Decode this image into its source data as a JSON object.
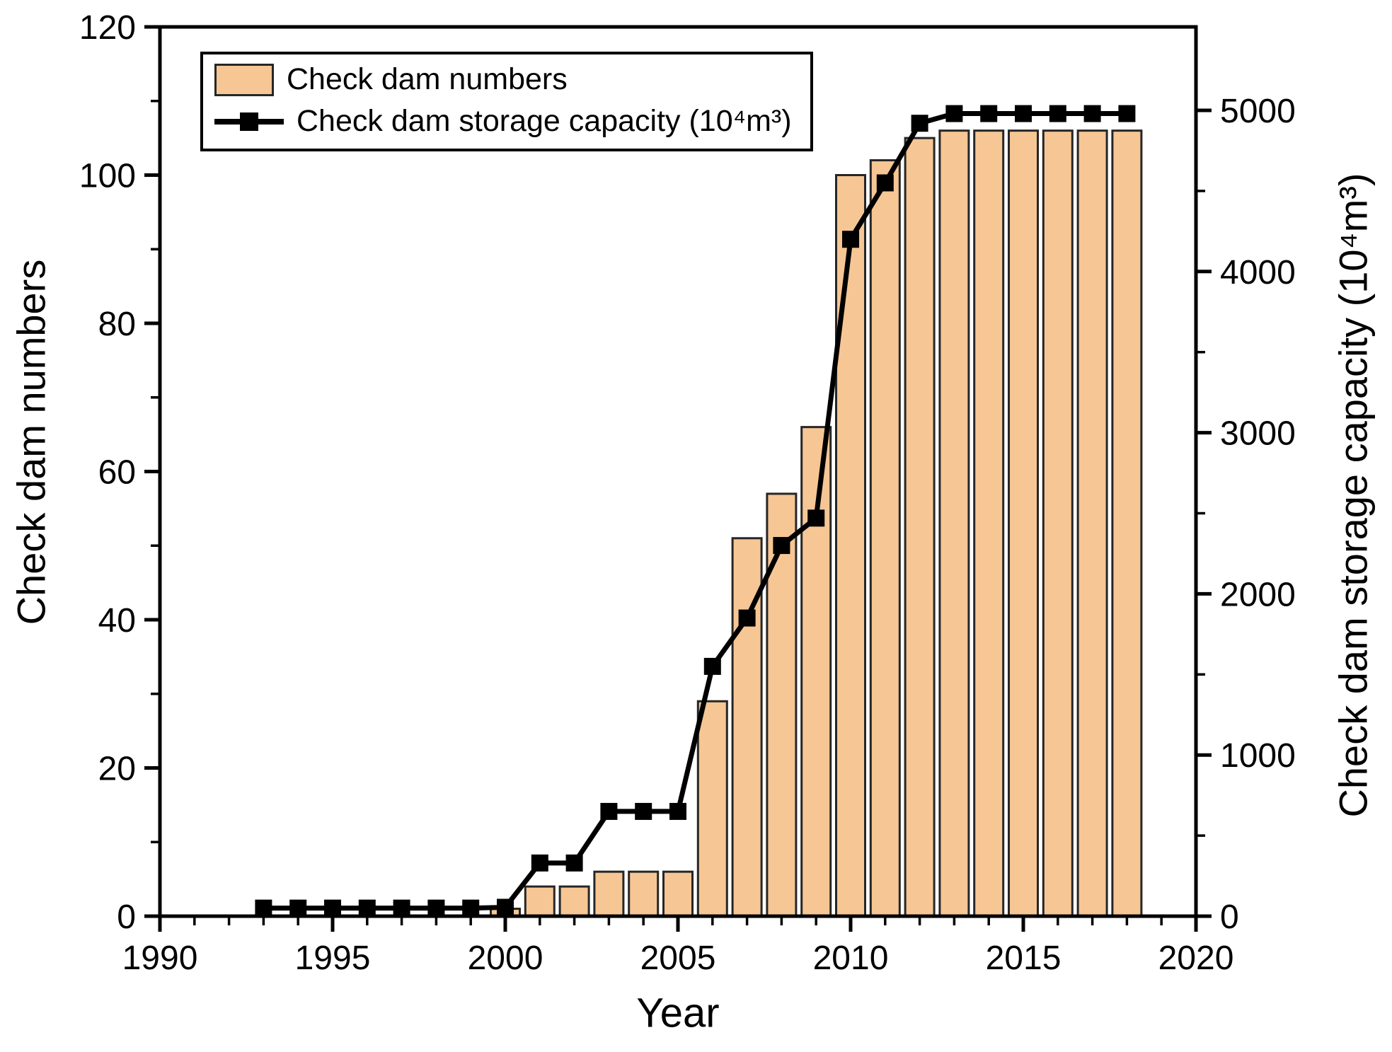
{
  "figure": {
    "xlabel": "Year",
    "ylabel_left": "Check dam numbers",
    "ylabel_right": "Check dam storage capacity (10⁴m³)"
  },
  "legend": {
    "items": [
      {
        "label": "Check dam numbers",
        "swatch": "bar"
      },
      {
        "label": "Check dam storage capacity (10⁴m³)",
        "swatch": "line-marker"
      }
    ]
  },
  "colors": {
    "background": "#ffffff",
    "bar_fill": "#F6C694",
    "bar_stroke": "#262626",
    "line": "#000000",
    "marker": "#000000",
    "axis": "#000000"
  },
  "chart_data": {
    "type": "bar",
    "title": "",
    "xlabel": "Year",
    "grid": false,
    "legend_position": "top-left",
    "xlim": [
      1990,
      2020
    ],
    "x_major_ticks": [
      1990,
      1995,
      2000,
      2005,
      2010,
      2015,
      2020
    ],
    "x_minor_step": 1,
    "left_axis": {
      "label": "Check dam numbers",
      "lim": [
        0,
        120
      ],
      "major_ticks": [
        0,
        20,
        40,
        60,
        80,
        100,
        120
      ],
      "minor_ticks": [
        10,
        30,
        50,
        70,
        90,
        110
      ]
    },
    "right_axis": {
      "label": "Check dam storage capacity (10⁴m³)",
      "lim": [
        0,
        5518
      ],
      "major_ticks": [
        0,
        1000,
        2000,
        3000,
        4000,
        5000
      ],
      "minor_ticks": [
        500,
        1500,
        2500,
        3500,
        4500
      ]
    },
    "series": [
      {
        "name": "Check dam numbers",
        "type": "bar",
        "axis": "left",
        "x": [
          2000,
          2001,
          2002,
          2003,
          2004,
          2005,
          2006,
          2007,
          2008,
          2009,
          2010,
          2011,
          2012,
          2013,
          2014,
          2015,
          2016,
          2017,
          2018
        ],
        "values": [
          1,
          4,
          4,
          6,
          6,
          6,
          29,
          51,
          57,
          66,
          100,
          102,
          105,
          106,
          106,
          106,
          106,
          106,
          106
        ]
      },
      {
        "name": "Check dam storage capacity (10⁴m³)",
        "type": "line",
        "axis": "right",
        "x": [
          1993,
          1994,
          1995,
          1996,
          1997,
          1998,
          1999,
          2000,
          2001,
          2002,
          2003,
          2004,
          2005,
          2006,
          2007,
          2008,
          2009,
          2010,
          2011,
          2012,
          2013,
          2014,
          2015,
          2016,
          2017,
          2018
        ],
        "values": [
          50,
          50,
          50,
          50,
          50,
          50,
          50,
          55,
          330,
          330,
          650,
          650,
          650,
          1550,
          1850,
          2300,
          2470,
          4200,
          4550,
          4920,
          4980,
          4980,
          4980,
          4980,
          4980,
          4980
        ]
      }
    ]
  }
}
